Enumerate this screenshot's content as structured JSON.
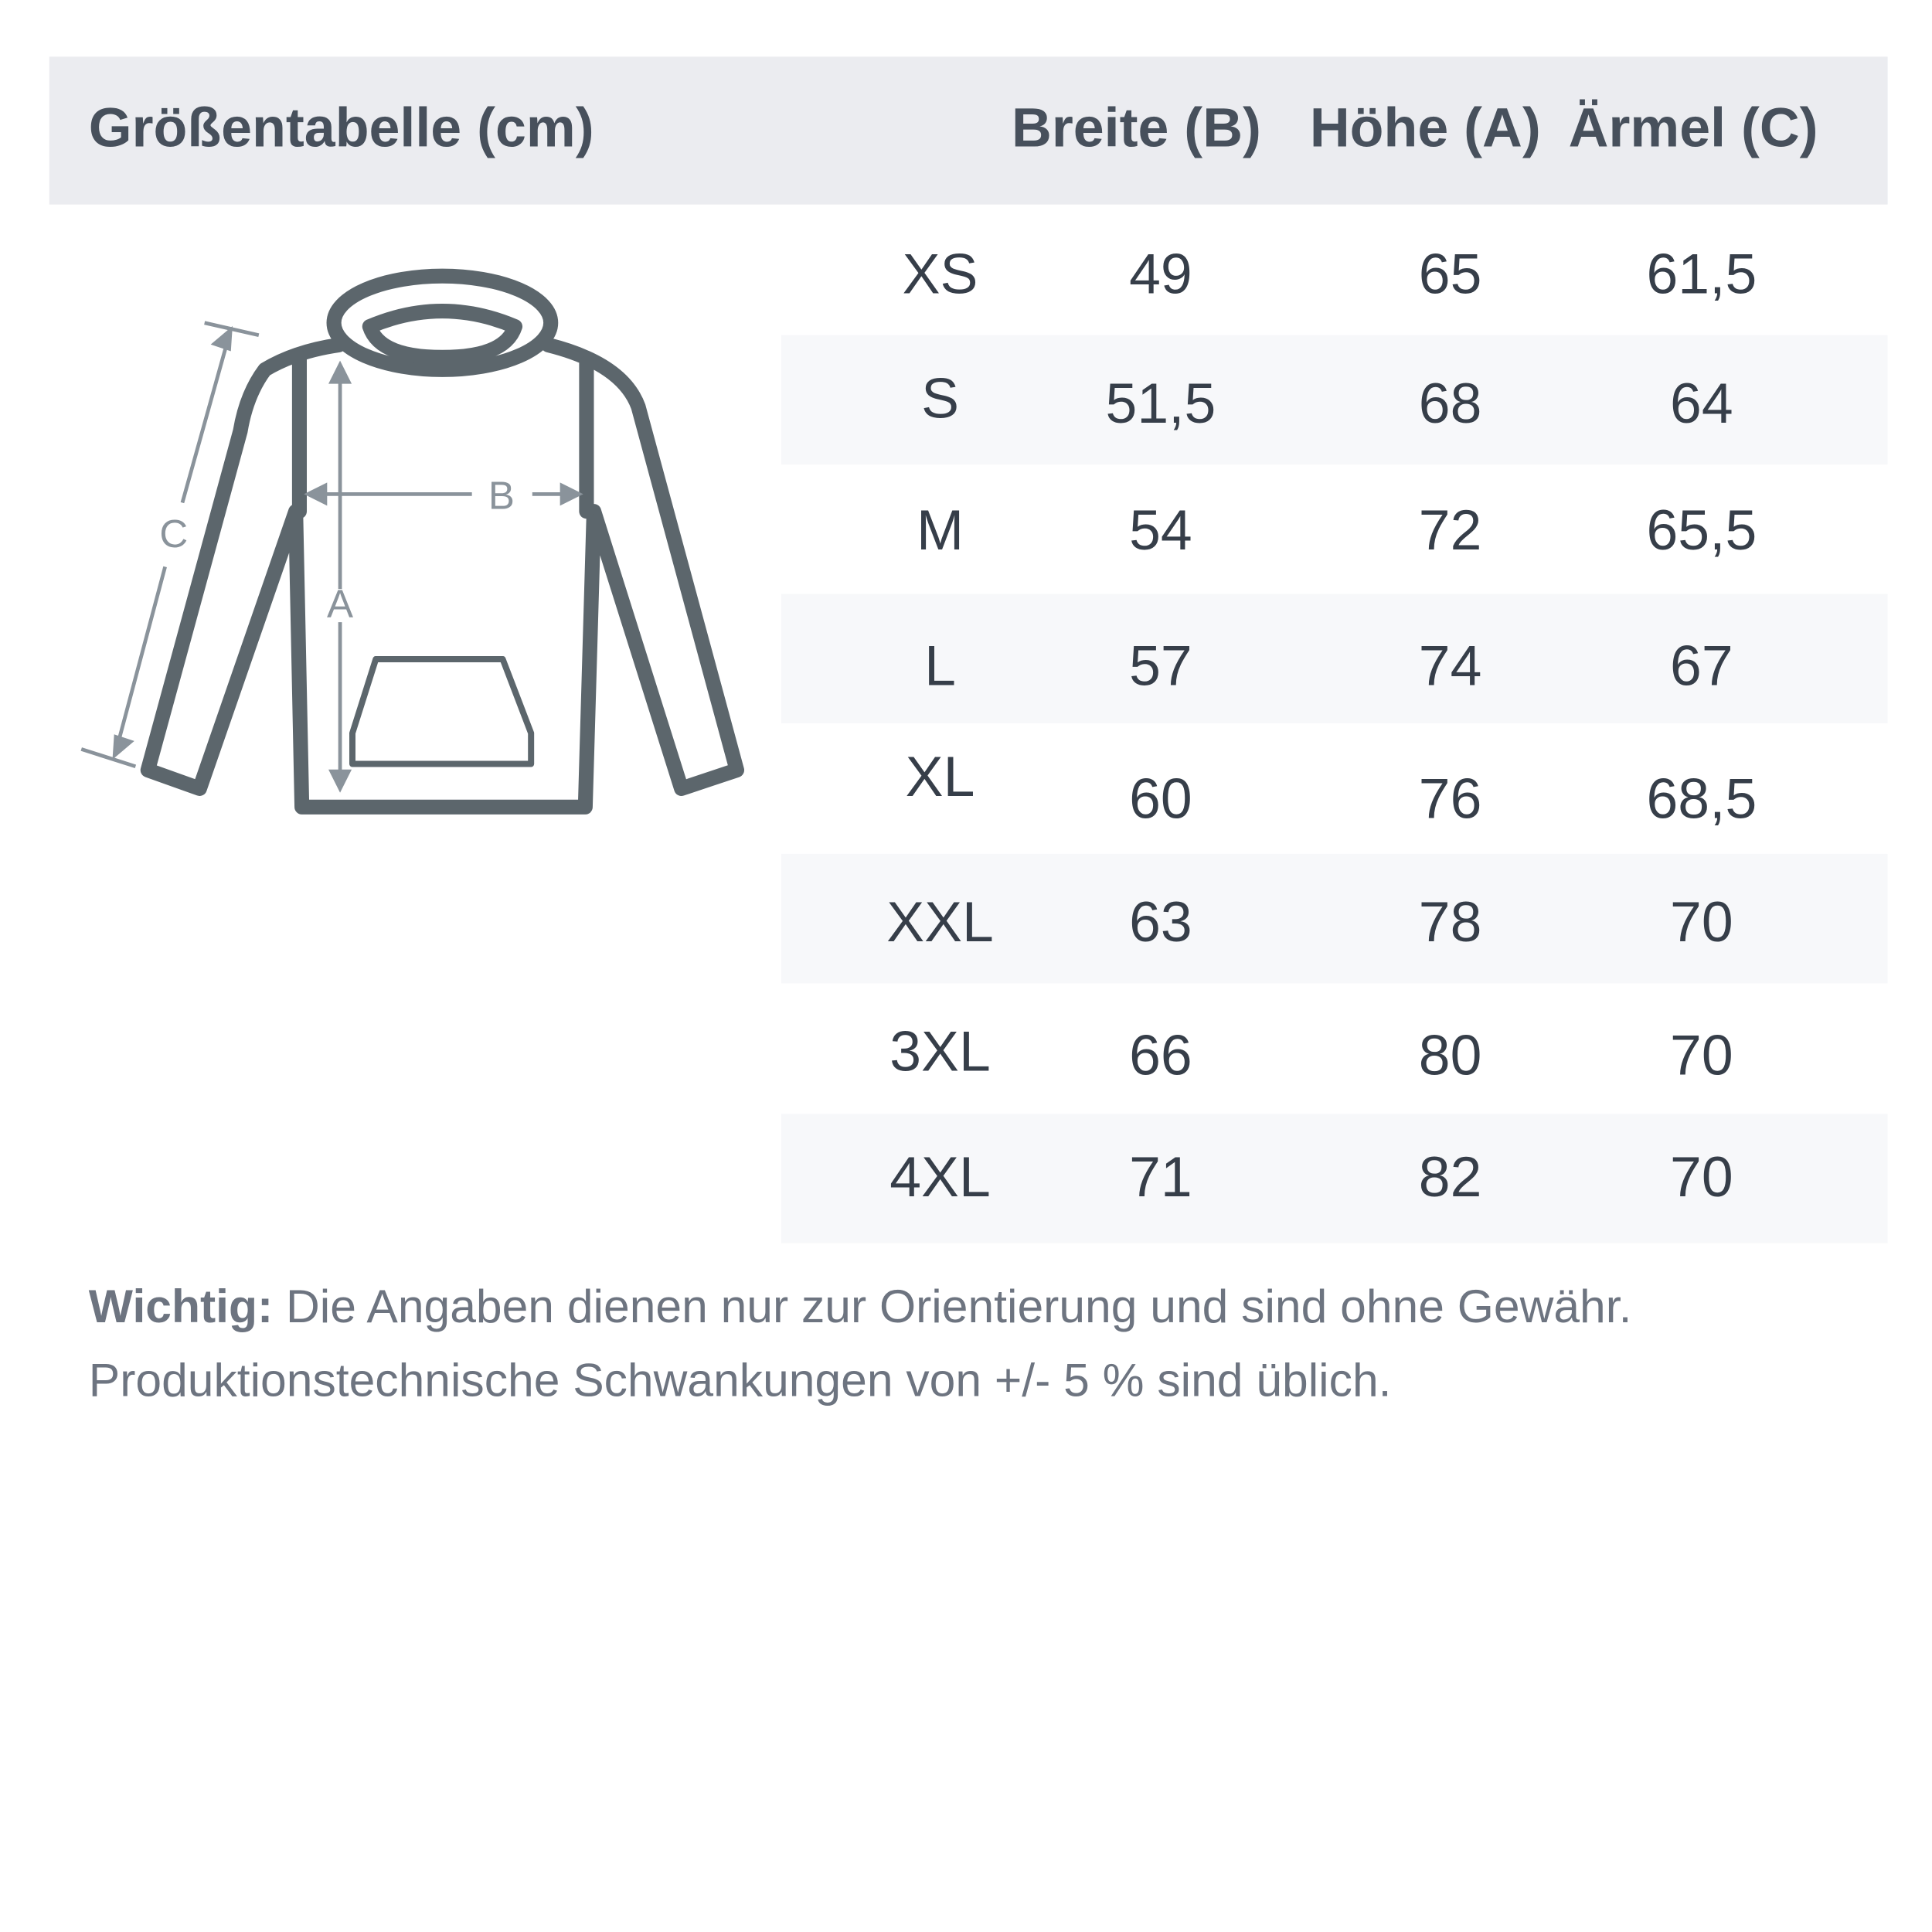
{
  "header": {
    "title": "Größentabelle (cm)",
    "columns": [
      "Breite (B)",
      "Höhe (A)",
      "Ärmel (C)"
    ]
  },
  "diagram": {
    "labels": {
      "width": "B",
      "height": "A",
      "sleeve": "C"
    },
    "icon": "hoodie-measurement-icon"
  },
  "table": {
    "rows": [
      {
        "size": "XS",
        "breite": "49",
        "hoehe": "65",
        "aermel": "61,5"
      },
      {
        "size": "S",
        "breite": "51,5",
        "hoehe": "68",
        "aermel": "64"
      },
      {
        "size": "M",
        "breite": "54",
        "hoehe": "72",
        "aermel": "65,5"
      },
      {
        "size": "L",
        "breite": "57",
        "hoehe": "74",
        "aermel": "67"
      },
      {
        "size": "XL",
        "breite": "60",
        "hoehe": "76",
        "aermel": "68,5"
      },
      {
        "size": "XXL",
        "breite": "63",
        "hoehe": "78",
        "aermel": "70"
      },
      {
        "size": "3XL",
        "breite": "66",
        "hoehe": "80",
        "aermel": "70"
      },
      {
        "size": "4XL",
        "breite": "71",
        "hoehe": "82",
        "aermel": "70"
      }
    ]
  },
  "note": {
    "label": "Wichtig:",
    "line1": " Die Angaben dienen nur zur Orientierung und sind ohne Gewähr.",
    "line2": "Produktionstechnische Schwankungen von +/- 5 % sind üblich."
  },
  "colors": {
    "header_bg": "#ebecf0",
    "stripe": "#f7f8fa",
    "outline": "#5c666c",
    "measure": "#8a939b"
  }
}
